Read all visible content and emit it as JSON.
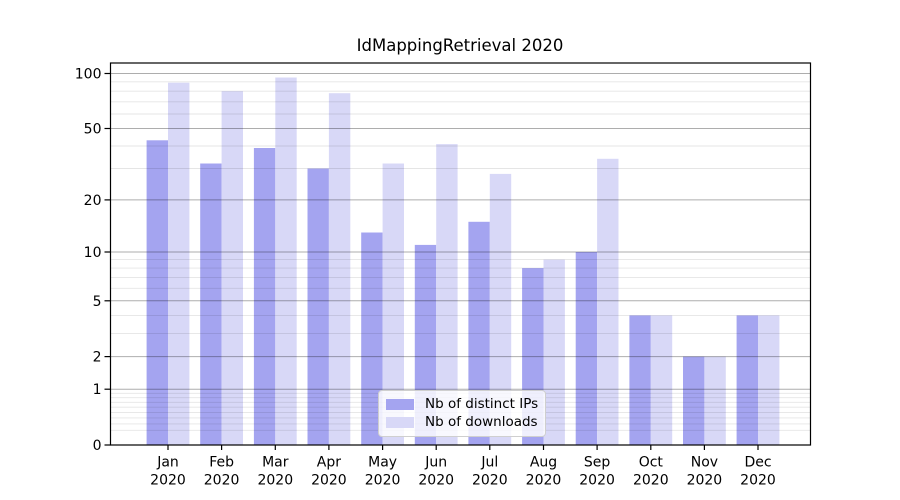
{
  "chart_data": {
    "type": "bar",
    "title": "IdMappingRetrieval 2020",
    "categories": [
      "Jan",
      "Feb",
      "Mar",
      "Apr",
      "May",
      "Jun",
      "Jul",
      "Aug",
      "Sep",
      "Oct",
      "Nov",
      "Dec"
    ],
    "year_label": "2020",
    "series": [
      {
        "key": "distinct_ips",
        "name": "Nb of distinct IPs",
        "color": "#a4a4f0",
        "values": [
          43,
          32,
          39,
          30,
          13,
          11,
          15,
          8,
          10,
          4,
          2,
          4
        ]
      },
      {
        "key": "downloads",
        "name": "Nb of downloads",
        "color": "#d8d8f7",
        "values": [
          89,
          80,
          95,
          78,
          32,
          41,
          28,
          9,
          34,
          4,
          2,
          4
        ]
      }
    ],
    "yscale": "log1p",
    "ylim": [
      0,
      114
    ],
    "yticks": [
      0,
      1,
      2,
      5,
      10,
      20,
      50,
      100
    ],
    "ytick_labels": [
      "0",
      "1",
      "2",
      "5",
      "10",
      "20",
      "50",
      "100"
    ],
    "yminor_gridlines": [
      0.2,
      0.3,
      0.4,
      0.5,
      0.6,
      0.7,
      0.8,
      0.9,
      3,
      4,
      6,
      7,
      8,
      9,
      30,
      40,
      60,
      70,
      80,
      90
    ],
    "grid": "both",
    "legend_position": "lower center",
    "colors": {
      "grid_major": "rgba(0,0,0,0.32)",
      "grid_minor": "rgba(0,0,0,0.10)",
      "spine": "#000000",
      "text": "#000000",
      "background": "#ffffff"
    }
  }
}
